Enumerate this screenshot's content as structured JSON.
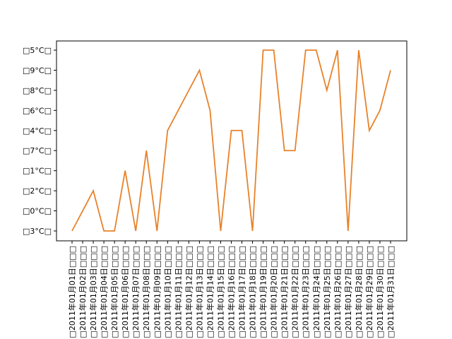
{
  "chart_data": {
    "type": "line",
    "ycategories": [
      "□3°C□",
      "□0°C□",
      "□2°C□",
      "□1°C□",
      "□7°C□",
      "□4°C□",
      "□6°C□",
      "□8°C□",
      "□9°C□",
      "□5°C□"
    ],
    "categories": [
      "□2011年01月01日□□□",
      "□2011年01月02日□□□",
      "□2011年01月03日□□□",
      "□2011年01月04日□□□",
      "□2011年01月05日□□□",
      "□2011年01月06日□□□",
      "□2011年01月07日□□□",
      "□2011年01月08日□□□",
      "□2011年01月09日□□□",
      "□2011年01月10日□□□",
      "□2011年01月11日□□□",
      "□2011年01月12日□□□",
      "□2011年01月13日□□□",
      "□2011年01月14日□□□",
      "□2011年01月15日□□□",
      "□2011年01月16日□□□",
      "□2011年01月17日□□□",
      "□2011年01月18日□□□",
      "□2011年01月19日□□□",
      "□2011年01月20日□□□",
      "□2011年01月21日□□□",
      "□2011年01月22日□□□",
      "□2011年01月23日□□□",
      "□2011年01月24日□□□",
      "□2011年01月25日□□□",
      "□2011年01月26日□□□",
      "□2011年01月27日□□□",
      "□2011年01月28日□□□",
      "□2011年01月29日□□□",
      "□2011年01月30日□□□",
      "□2011年01月31日□□□"
    ],
    "values": [
      "□3°C□",
      "□0°C□",
      "□2°C□",
      "□3°C□",
      "□3°C□",
      "□1°C□",
      "□3°C□",
      "□7°C□",
      "□3°C□",
      "□4°C□",
      "□6°C□",
      "□8°C□",
      "□9°C□",
      "□6°C□",
      "□3°C□",
      "□4°C□",
      "□4°C□",
      "□3°C□",
      "□5°C□",
      "□5°C□",
      "□7°C□",
      "□7°C□",
      "□5°C□",
      "□5°C□",
      "□8°C□",
      "□5°C□",
      "□3°C□",
      "□5°C□",
      "□4°C□",
      "□6°C□",
      "□9°C□"
    ],
    "color": "#e8822a"
  }
}
